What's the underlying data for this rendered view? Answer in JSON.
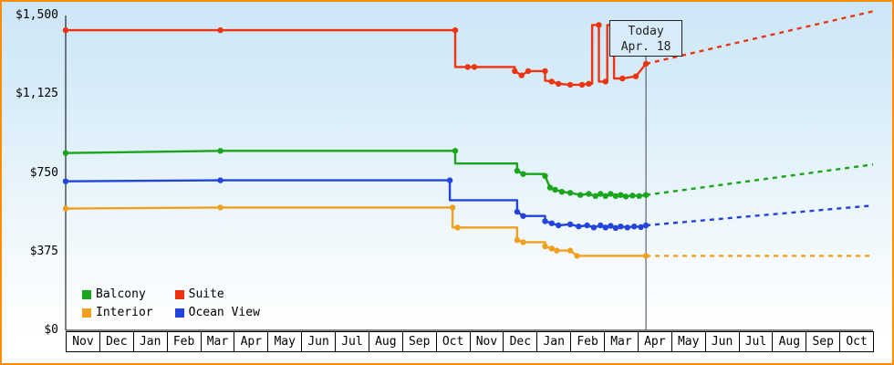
{
  "chart_data": {
    "type": "line",
    "title": "",
    "today_marker": {
      "line1": "Today",
      "line2": "Apr. 18",
      "x": 17.25
    },
    "x_axis": {
      "labels": [
        "Nov",
        "Dec",
        "Jan",
        "Feb",
        "Mar",
        "Apr",
        "May",
        "Jun",
        "Jul",
        "Aug",
        "Sep",
        "Oct",
        "Nov",
        "Dec",
        "Jan",
        "Feb",
        "Mar",
        "Apr",
        "May",
        "Jun",
        "Jul",
        "Aug",
        "Sep",
        "Oct"
      ]
    },
    "y_axis": {
      "min": 0,
      "max": 1500,
      "ticks": [
        {
          "value": 0,
          "label": "$0"
        },
        {
          "value": 375,
          "label": "$375"
        },
        {
          "value": 750,
          "label": "$750"
        },
        {
          "value": 1125,
          "label": "$1,125"
        },
        {
          "value": 1500,
          "label": "$1,500"
        }
      ]
    },
    "legend_position": "bottom-left",
    "colors": {
      "frame_border": "#ff8c00",
      "plot_bg_top": "#cde6f6",
      "plot_bg_bottom": "#ffffff",
      "axis": "#000000",
      "today_line": "#444455"
    },
    "series": [
      {
        "name": "Balcony",
        "color": "#1aa51a",
        "solid": [
          [
            0,
            845,
            1
          ],
          [
            4.6,
            855,
            1
          ],
          [
            11.58,
            855,
            1
          ],
          [
            11.58,
            795,
            0
          ],
          [
            13.42,
            795,
            0
          ],
          [
            13.42,
            760,
            1
          ],
          [
            13.6,
            745,
            1
          ],
          [
            14.25,
            745,
            0
          ],
          [
            14.25,
            735,
            1
          ],
          [
            14.4,
            680,
            1
          ],
          [
            14.55,
            670,
            1
          ],
          [
            14.75,
            660,
            1
          ],
          [
            15.0,
            655,
            1
          ],
          [
            15.3,
            645,
            1
          ],
          [
            15.55,
            650,
            1
          ],
          [
            15.75,
            640,
            1
          ],
          [
            15.9,
            650,
            1
          ],
          [
            16.05,
            640,
            1
          ],
          [
            16.2,
            650,
            1
          ],
          [
            16.35,
            640,
            1
          ],
          [
            16.5,
            645,
            1
          ],
          [
            16.65,
            638,
            1
          ],
          [
            16.85,
            642,
            1
          ],
          [
            17.05,
            640,
            1
          ],
          [
            17.25,
            645,
            1
          ]
        ],
        "dashed": [
          [
            17.25,
            645
          ],
          [
            24,
            790
          ]
        ]
      },
      {
        "name": "Suite",
        "color": "#ee3311",
        "solid": [
          [
            0,
            1430,
            1
          ],
          [
            4.6,
            1430,
            1
          ],
          [
            11.58,
            1430,
            1
          ],
          [
            11.58,
            1255,
            0
          ],
          [
            11.95,
            1255,
            1
          ],
          [
            12.15,
            1255,
            1
          ],
          [
            13.35,
            1255,
            0
          ],
          [
            13.35,
            1235,
            1
          ],
          [
            13.55,
            1215,
            1
          ],
          [
            13.75,
            1235,
            1
          ],
          [
            14.25,
            1235,
            1
          ],
          [
            14.25,
            1190,
            0
          ],
          [
            14.45,
            1185,
            1
          ],
          [
            14.65,
            1175,
            1
          ],
          [
            15.0,
            1170,
            1
          ],
          [
            15.35,
            1170,
            1
          ],
          [
            15.55,
            1175,
            1
          ],
          [
            15.65,
            1175,
            0
          ],
          [
            15.65,
            1455,
            0
          ],
          [
            15.85,
            1455,
            1
          ],
          [
            15.85,
            1185,
            0
          ],
          [
            16.05,
            1185,
            1
          ],
          [
            16.1,
            1185,
            0
          ],
          [
            16.1,
            1455,
            0
          ],
          [
            16.3,
            1455,
            1
          ],
          [
            16.3,
            1200,
            0
          ],
          [
            16.55,
            1200,
            1
          ],
          [
            16.95,
            1210,
            1
          ],
          [
            17.25,
            1270,
            1
          ]
        ],
        "dashed": [
          [
            17.25,
            1270
          ],
          [
            24,
            1520
          ]
        ]
      },
      {
        "name": "Interior",
        "color": "#f0a01e",
        "solid": [
          [
            0,
            580,
            1
          ],
          [
            4.6,
            585,
            1
          ],
          [
            11.5,
            585,
            1
          ],
          [
            11.5,
            490,
            0
          ],
          [
            11.65,
            490,
            1
          ],
          [
            13.42,
            490,
            0
          ],
          [
            13.42,
            430,
            1
          ],
          [
            13.6,
            420,
            1
          ],
          [
            14.25,
            420,
            0
          ],
          [
            14.25,
            400,
            1
          ],
          [
            14.45,
            390,
            1
          ],
          [
            14.6,
            380,
            1
          ],
          [
            15.0,
            380,
            1
          ],
          [
            15.2,
            355,
            1
          ],
          [
            17.25,
            355,
            1
          ]
        ],
        "dashed": [
          [
            17.25,
            355
          ],
          [
            24,
            355
          ]
        ]
      },
      {
        "name": "Ocean View",
        "color": "#2244dd",
        "solid": [
          [
            0,
            710,
            1
          ],
          [
            4.6,
            715,
            1
          ],
          [
            11.42,
            715,
            1
          ],
          [
            11.42,
            620,
            0
          ],
          [
            13.42,
            620,
            0
          ],
          [
            13.42,
            565,
            1
          ],
          [
            13.6,
            545,
            1
          ],
          [
            14.25,
            545,
            0
          ],
          [
            14.25,
            520,
            1
          ],
          [
            14.45,
            510,
            1
          ],
          [
            14.65,
            500,
            1
          ],
          [
            15.0,
            505,
            1
          ],
          [
            15.25,
            495,
            1
          ],
          [
            15.5,
            500,
            1
          ],
          [
            15.7,
            490,
            1
          ],
          [
            15.9,
            500,
            1
          ],
          [
            16.05,
            490,
            1
          ],
          [
            16.2,
            498,
            1
          ],
          [
            16.35,
            488,
            1
          ],
          [
            16.5,
            495,
            1
          ],
          [
            16.7,
            490,
            1
          ],
          [
            16.9,
            495,
            1
          ],
          [
            17.1,
            492,
            1
          ],
          [
            17.25,
            500,
            1
          ]
        ],
        "dashed": [
          [
            17.25,
            500
          ],
          [
            24,
            595
          ]
        ]
      }
    ]
  }
}
